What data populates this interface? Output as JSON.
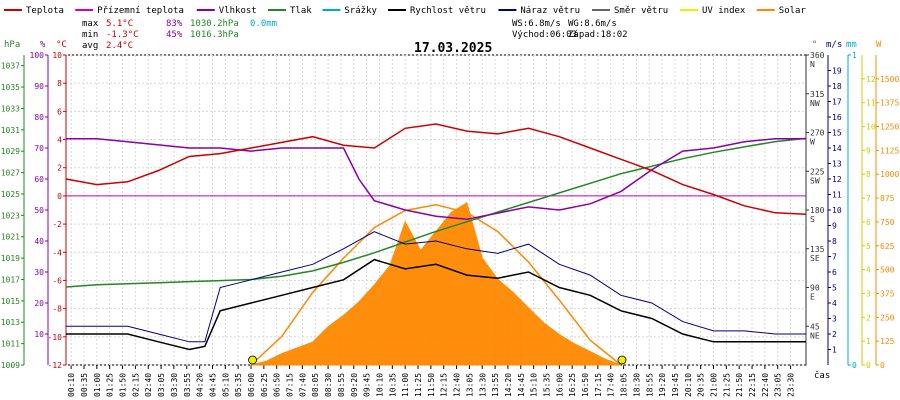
{
  "colors": {
    "teplota": "#cc0000",
    "prizemni_teplota": "#cc00cc",
    "vlhkost": "#8800aa",
    "tlak": "#228822",
    "srazky": "#00aacc",
    "rychlost": "#000000",
    "naraz": "#000080",
    "smer": "#666666",
    "uv": "#eeee00",
    "solar": "#ff8800",
    "zero_line": "#cc00cc"
  },
  "legend": [
    {
      "label": "Teplota",
      "color": "#cc0000",
      "kind": "line"
    },
    {
      "label": "Přízemní teplota",
      "color": "#cc00cc",
      "kind": "line"
    },
    {
      "label": "Vlhkost",
      "color": "#8800aa",
      "kind": "line"
    },
    {
      "label": "Tlak",
      "color": "#228822",
      "kind": "line"
    },
    {
      "label": "Srážky",
      "color": "#00aacc",
      "kind": "line"
    },
    {
      "label": "Rychlost větru",
      "color": "#000000",
      "kind": "line"
    },
    {
      "label": "Náraz větru",
      "color": "#000080",
      "kind": "line"
    },
    {
      "label": "Směr větru",
      "color": "#666666",
      "kind": "line"
    },
    {
      "label": "UV index",
      "color": "#eeee00",
      "kind": "line"
    },
    {
      "label": "Solar",
      "color": "#ff8800",
      "kind": "line"
    }
  ],
  "stats": {
    "max": {
      "label": "max",
      "temp": "5.1°C",
      "hum": "83%",
      "press": "1030.2hPa",
      "rain": "0.0mm"
    },
    "min": {
      "label": "min",
      "temp": "-1.3°C",
      "hum": "45%",
      "press": "1016.3hPa"
    },
    "avg": {
      "label": "avg",
      "temp": "2.4°C"
    }
  },
  "wind_info": {
    "ws": "WS:6.8m/s",
    "wg": "WG:8.6m/s"
  },
  "sun_info": {
    "sunrise": "Východ:06:03",
    "sunset": "Západ:18:02"
  },
  "date": "17.03.2025",
  "axis_titles": {
    "press": "hPa",
    "hum": "%",
    "temp": "°C",
    "dir": "°",
    "ms": "m/s",
    "mm": "mm",
    "w": "W",
    "time": "čas"
  },
  "chart_data": {
    "type": "line",
    "title": "17.03.2025",
    "x_range_hours": [
      0,
      24
    ],
    "axes": {
      "pressure_hPa": {
        "ticks": [
          1009,
          1011,
          1013,
          1015,
          1017,
          1019,
          1021,
          1023,
          1025,
          1027,
          1029,
          1031,
          1033,
          1035,
          1037
        ],
        "range": [
          1009,
          1038
        ]
      },
      "humidity_pct": {
        "ticks": [
          10,
          20,
          30,
          40,
          50,
          60,
          70,
          80,
          90,
          100
        ],
        "range": [
          0,
          100
        ]
      },
      "temperature_C": {
        "ticks": [
          -12,
          -10,
          -8,
          -6,
          -4,
          -2,
          0,
          2,
          4,
          6,
          8,
          10
        ],
        "range": [
          -12,
          10
        ]
      },
      "direction_deg": {
        "ticks": [
          "45",
          "90",
          "135",
          "180",
          "225",
          "270",
          "315",
          "360"
        ],
        "labels": [
          "NE",
          "E",
          "SE",
          "S",
          "SW",
          "W",
          "NW",
          "N"
        ],
        "range": [
          0,
          360
        ]
      },
      "wind_ms": {
        "ticks": [
          1,
          2,
          3,
          4,
          5,
          6,
          7,
          8,
          9,
          10,
          11,
          12,
          13,
          14,
          15,
          16,
          17,
          18,
          19
        ],
        "range": [
          0,
          20
        ]
      },
      "rain_mm": {
        "ticks": [
          "0",
          "1"
        ],
        "range": [
          0,
          1
        ]
      },
      "uv": {
        "ticks": [
          0,
          1,
          2,
          3,
          4,
          5,
          6,
          7,
          8,
          9,
          10,
          11,
          12
        ],
        "range": [
          0,
          13
        ]
      },
      "solar_W": {
        "ticks": [
          0,
          125,
          250,
          375,
          500,
          625,
          750,
          875,
          1000,
          1125,
          1250,
          1375,
          1500
        ],
        "range": [
          0,
          1625
        ]
      }
    },
    "x_tick_labels": [
      "00:10",
      "00:35",
      "01:00",
      "01:25",
      "01:50",
      "02:15",
      "02:40",
      "03:05",
      "03:30",
      "03:55",
      "04:20",
      "04:45",
      "05:10",
      "05:35",
      "06:00",
      "06:25",
      "06:50",
      "07:15",
      "07:40",
      "08:05",
      "08:30",
      "08:55",
      "09:20",
      "09:45",
      "10:10",
      "10:35",
      "11:00",
      "11:25",
      "11:50",
      "12:15",
      "12:40",
      "13:05",
      "13:30",
      "13:55",
      "14:20",
      "14:45",
      "15:10",
      "15:35",
      "16:00",
      "16:25",
      "16:50",
      "17:15",
      "17:40",
      "18:05",
      "18:30",
      "18:55",
      "19:20",
      "19:45",
      "20:10",
      "20:35",
      "21:00",
      "21:25",
      "21:50",
      "22:15",
      "22:40",
      "23:05",
      "23:30"
    ],
    "series": [
      {
        "name": "Teplota",
        "unit": "°C",
        "x": [
          0,
          1,
          2,
          3,
          4,
          5,
          6,
          7,
          8,
          9,
          10,
          11,
          12,
          13,
          14,
          15,
          16,
          17,
          18,
          19,
          20,
          21,
          22,
          23,
          24
        ],
        "values": [
          1.2,
          0.8,
          1.0,
          1.8,
          2.8,
          3.0,
          3.4,
          3.8,
          4.2,
          3.6,
          3.4,
          4.8,
          5.1,
          4.6,
          4.4,
          4.8,
          4.2,
          3.4,
          2.6,
          1.8,
          0.8,
          0.1,
          -0.7,
          -1.2,
          -1.3
        ]
      },
      {
        "name": "Vlhkost",
        "unit": "%",
        "x": [
          0,
          1,
          2,
          3,
          4,
          5,
          6,
          7,
          8,
          9,
          9.5,
          10,
          11,
          12,
          13,
          14,
          15,
          16,
          17,
          18,
          19,
          20,
          21,
          22,
          23,
          24
        ],
        "values": [
          73,
          73,
          72,
          71,
          70,
          70,
          69,
          70,
          70,
          70,
          60,
          53,
          50,
          48,
          47,
          49,
          51,
          50,
          52,
          56,
          63,
          69,
          70,
          72,
          73,
          73
        ]
      },
      {
        "name": "Tlak",
        "unit": "hPa",
        "x": [
          0,
          1,
          2,
          3,
          4,
          5,
          6,
          7,
          8,
          9,
          10,
          11,
          12,
          13,
          14,
          15,
          16,
          17,
          18,
          19,
          20,
          21,
          22,
          23,
          24
        ],
        "values": [
          1016.3,
          1016.5,
          1016.6,
          1016.7,
          1016.8,
          1016.9,
          1017.0,
          1017.3,
          1017.8,
          1018.6,
          1019.5,
          1020.5,
          1021.5,
          1022.4,
          1023.3,
          1024.2,
          1025.1,
          1026.0,
          1026.9,
          1027.6,
          1028.3,
          1028.9,
          1029.4,
          1029.9,
          1030.2
        ]
      },
      {
        "name": "Rychlost větru",
        "unit": "m/s",
        "x": [
          0,
          1,
          2,
          3,
          4,
          4.5,
          5,
          6,
          7,
          8,
          9,
          10,
          11,
          12,
          13,
          14,
          15,
          16,
          17,
          18,
          19,
          20,
          21,
          22,
          23,
          24
        ],
        "values": [
          2.0,
          2.0,
          2.0,
          1.5,
          1.0,
          1.2,
          3.5,
          4.0,
          4.5,
          5.0,
          5.5,
          6.8,
          6.2,
          6.5,
          5.8,
          5.6,
          6.0,
          5.0,
          4.5,
          3.5,
          3.0,
          2.0,
          1.5,
          1.5,
          1.5,
          1.5
        ]
      },
      {
        "name": "Náraz větru",
        "unit": "m/s",
        "x": [
          0,
          1,
          2,
          3,
          4,
          4.5,
          5,
          6,
          7,
          8,
          9,
          10,
          11,
          12,
          13,
          14,
          15,
          16,
          17,
          18,
          19,
          20,
          21,
          22,
          23,
          24
        ],
        "values": [
          2.5,
          2.5,
          2.5,
          2.0,
          1.5,
          1.5,
          5.0,
          5.5,
          6.0,
          6.5,
          7.5,
          8.6,
          7.8,
          8.0,
          7.5,
          7.2,
          7.8,
          6.5,
          5.8,
          4.5,
          4.0,
          2.8,
          2.2,
          2.2,
          2.0,
          2.0
        ]
      },
      {
        "name": "Solar",
        "unit": "W",
        "x": [
          6,
          6.5,
          7,
          7.5,
          8,
          8.5,
          9,
          9.5,
          10,
          10.5,
          11,
          11.5,
          12,
          12.5,
          13,
          13.5,
          14,
          14.5,
          15,
          15.5,
          16,
          16.5,
          17,
          17.5,
          18
        ],
        "values": [
          0,
          20,
          60,
          90,
          120,
          200,
          260,
          330,
          420,
          520,
          750,
          600,
          700,
          800,
          850,
          560,
          450,
          380,
          300,
          220,
          160,
          110,
          70,
          30,
          0
        ]
      },
      {
        "name": "Solar (clear sky)",
        "unit": "W",
        "x": [
          6,
          7,
          8,
          9,
          10,
          11,
          12,
          13,
          14,
          15,
          16,
          17,
          18
        ],
        "values": [
          0,
          150,
          380,
          560,
          720,
          810,
          840,
          800,
          700,
          540,
          340,
          130,
          0
        ]
      }
    ]
  }
}
